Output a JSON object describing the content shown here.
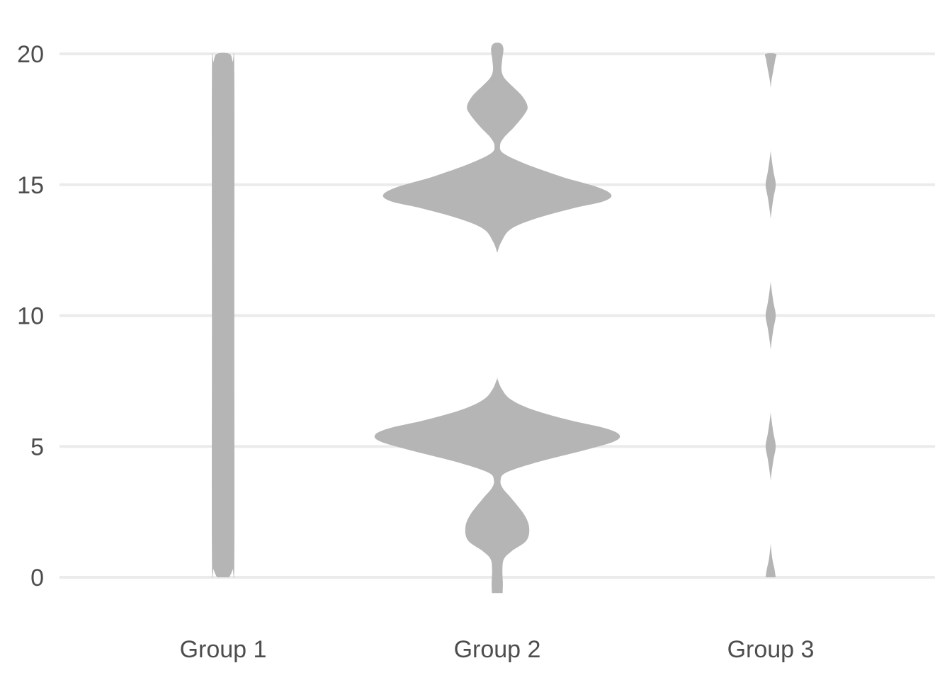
{
  "chart_data": {
    "type": "violin",
    "categories": [
      "Group 1",
      "Group 2",
      "Group 3"
    ],
    "ylim": [
      0,
      20
    ],
    "y_ticks": [
      0,
      5,
      10,
      15,
      20
    ],
    "y_tick_labels": [
      "0",
      "5",
      "10",
      "15",
      "20"
    ],
    "grid": "horizontal",
    "color": "#b5b5b5",
    "series": [
      {
        "category": "Group 1",
        "y_range": [
          0,
          20
        ],
        "density": [
          [
            0.0,
            0.55
          ],
          [
            0.3,
            0.85
          ],
          [
            0.8,
            1.0
          ],
          [
            10.0,
            1.0
          ],
          [
            19.2,
            1.0
          ],
          [
            19.7,
            0.85
          ],
          [
            20.0,
            0.55
          ]
        ]
      },
      {
        "category": "Group 2",
        "y_range": [
          -0.6,
          20.4
        ],
        "density": [
          [
            -0.6,
            0.48
          ],
          [
            -0.2,
            0.5
          ],
          [
            0.3,
            0.46
          ],
          [
            0.7,
            0.6
          ],
          [
            1.0,
            1.3
          ],
          [
            1.4,
            2.6
          ],
          [
            1.9,
            2.85
          ],
          [
            2.4,
            2.4
          ],
          [
            3.0,
            1.3
          ],
          [
            3.4,
            0.5
          ],
          [
            3.7,
            0.3
          ],
          [
            4.0,
            0.8
          ],
          [
            4.4,
            3.6
          ],
          [
            4.9,
            8.2
          ],
          [
            5.2,
            10.5
          ],
          [
            5.45,
            10.9
          ],
          [
            5.7,
            9.6
          ],
          [
            6.0,
            6.5
          ],
          [
            6.4,
            3.2
          ],
          [
            6.8,
            1.2
          ],
          [
            7.2,
            0.4
          ],
          [
            7.6,
            0.0
          ],
          [
            12.4,
            0.0
          ],
          [
            12.8,
            0.35
          ],
          [
            13.3,
            1.2
          ],
          [
            13.7,
            3.4
          ],
          [
            14.1,
            6.8
          ],
          [
            14.35,
            9.4
          ],
          [
            14.6,
            10.2
          ],
          [
            14.9,
            9.0
          ],
          [
            15.3,
            5.8
          ],
          [
            15.8,
            2.5
          ],
          [
            16.2,
            0.55
          ],
          [
            16.5,
            0.25
          ],
          [
            16.8,
            0.6
          ],
          [
            17.2,
            1.5
          ],
          [
            17.7,
            2.45
          ],
          [
            18.0,
            2.7
          ],
          [
            18.4,
            2.2
          ],
          [
            18.8,
            1.25
          ],
          [
            19.1,
            0.6
          ],
          [
            19.4,
            0.38
          ],
          [
            19.8,
            0.45
          ],
          [
            20.2,
            0.55
          ],
          [
            20.4,
            0.3
          ]
        ]
      },
      {
        "category": "Group 3",
        "y_range": [
          0,
          20
        ],
        "density": [
          [
            0.0,
            0.45
          ],
          [
            0.3,
            0.35
          ],
          [
            0.7,
            0.15
          ],
          [
            1.1,
            0.04
          ],
          [
            1.3,
            0.0
          ],
          [
            3.7,
            0.0
          ],
          [
            4.0,
            0.08
          ],
          [
            4.5,
            0.25
          ],
          [
            5.0,
            0.45
          ],
          [
            5.5,
            0.25
          ],
          [
            6.0,
            0.08
          ],
          [
            6.3,
            0.0
          ],
          [
            8.7,
            0.0
          ],
          [
            9.0,
            0.08
          ],
          [
            9.5,
            0.25
          ],
          [
            10.0,
            0.45
          ],
          [
            10.5,
            0.25
          ],
          [
            11.0,
            0.08
          ],
          [
            11.3,
            0.0
          ],
          [
            13.7,
            0.0
          ],
          [
            14.0,
            0.08
          ],
          [
            14.5,
            0.25
          ],
          [
            15.0,
            0.45
          ],
          [
            15.5,
            0.25
          ],
          [
            16.0,
            0.08
          ],
          [
            16.3,
            0.0
          ],
          [
            18.7,
            0.0
          ],
          [
            19.0,
            0.08
          ],
          [
            19.4,
            0.25
          ],
          [
            19.8,
            0.42
          ],
          [
            20.0,
            0.45
          ]
        ]
      }
    ]
  }
}
